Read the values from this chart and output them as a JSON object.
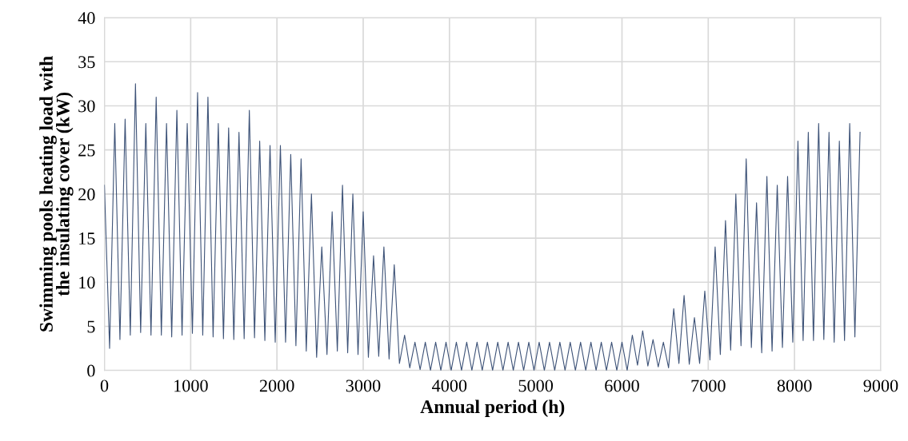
{
  "chart_data": {
    "type": "line",
    "xlabel": "Annual period (h)",
    "ylabel": "Swimming pools heating load with\nthe insulating cover (kW)",
    "xlim": [
      0,
      9000
    ],
    "xticks": [
      0,
      1000,
      2000,
      3000,
      4000,
      5000,
      6000,
      7000,
      8000,
      9000
    ],
    "ylim": [
      0,
      40
    ],
    "yticks": [
      0,
      5,
      10,
      15,
      20,
      25,
      30,
      35,
      40
    ],
    "grid": true,
    "legend": false,
    "marker": "none",
    "line_style": "solid",
    "series": [
      {
        "color": "#3e5378",
        "x": [
          0,
          60,
          120,
          180,
          240,
          300,
          360,
          420,
          480,
          540,
          600,
          660,
          720,
          780,
          840,
          900,
          960,
          1020,
          1080,
          1140,
          1200,
          1260,
          1320,
          1380,
          1440,
          1500,
          1560,
          1620,
          1680,
          1740,
          1800,
          1860,
          1920,
          1980,
          2040,
          2100,
          2160,
          2220,
          2280,
          2340,
          2400,
          2460,
          2520,
          2580,
          2640,
          2700,
          2760,
          2820,
          2880,
          2940,
          3000,
          3060,
          3120,
          3180,
          3240,
          3300,
          3360,
          3420,
          3480,
          3540,
          3600,
          3660,
          3720,
          3780,
          3840,
          3900,
          3960,
          4020,
          4080,
          4140,
          4200,
          4260,
          4320,
          4380,
          4440,
          4500,
          4560,
          4620,
          4680,
          4740,
          4800,
          4860,
          4920,
          4980,
          5040,
          5100,
          5160,
          5220,
          5280,
          5340,
          5400,
          5460,
          5520,
          5580,
          5640,
          5700,
          5760,
          5820,
          5880,
          5940,
          6000,
          6060,
          6120,
          6180,
          6240,
          6300,
          6360,
          6420,
          6480,
          6540,
          6600,
          6660,
          6720,
          6780,
          6840,
          6900,
          6960,
          7020,
          7080,
          7140,
          7200,
          7260,
          7320,
          7380,
          7440,
          7500,
          7560,
          7620,
          7680,
          7740,
          7800,
          7860,
          7920,
          7980,
          8040,
          8100,
          8160,
          8220,
          8280,
          8340,
          8400,
          8460,
          8520,
          8580,
          8640,
          8700,
          8760
        ],
        "values": [
          21,
          2.5,
          28,
          3.5,
          28.5,
          4,
          32.5,
          4.3,
          28,
          4,
          31,
          4,
          28,
          3.8,
          29.5,
          4,
          28,
          4.2,
          31.5,
          4,
          31,
          3.8,
          28,
          3.6,
          27.5,
          3.5,
          27,
          3.6,
          29.5,
          3.7,
          26,
          3.4,
          25.5,
          3.2,
          25.5,
          3.2,
          24.5,
          2.8,
          24,
          2.2,
          20,
          1.5,
          14,
          1.8,
          18,
          2.2,
          21,
          2,
          20,
          1.8,
          18,
          1.5,
          13,
          1.6,
          14,
          1.3,
          12,
          0.8,
          4,
          0.3,
          3.2,
          0.1,
          3.2,
          0,
          3.2,
          0,
          3.2,
          0,
          3.2,
          0,
          3.2,
          0,
          3.2,
          0,
          3.2,
          0,
          3.2,
          0,
          3.2,
          0,
          3.2,
          0,
          3.2,
          0,
          3.2,
          0,
          3.2,
          0,
          3.2,
          0,
          3.2,
          0,
          3.2,
          0,
          3.2,
          0,
          3.2,
          0,
          3.2,
          0,
          3.2,
          0,
          4,
          0.6,
          4.5,
          0.5,
          3.5,
          0.4,
          3.2,
          0.3,
          7,
          0.8,
          8.5,
          0.7,
          6,
          0.8,
          9,
          1.2,
          14,
          1.8,
          17,
          2.3,
          20,
          2.8,
          24,
          2.6,
          19,
          2,
          22,
          2.2,
          21,
          2.6,
          22,
          3.2,
          26,
          3.4,
          27,
          3.4,
          28,
          3.5,
          27,
          3.2,
          26,
          3.4,
          28,
          3.8,
          27
        ]
      }
    ]
  }
}
